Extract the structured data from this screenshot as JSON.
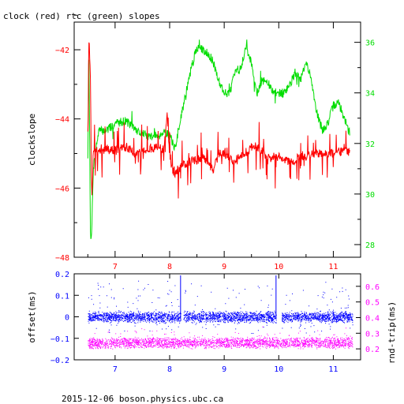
{
  "footer": "2015-12-06 boson.physics.ubc.ca",
  "colors": {
    "red": "#ff0000",
    "green": "#00dd00",
    "blue": "#0000ff",
    "magenta": "#ff00ff",
    "black": "#000000"
  },
  "chart_data": [
    {
      "type": "line",
      "title": "clock (red) rtc (green) slopes",
      "xlabel": "",
      "ylabel": "clockslope",
      "y2label": "",
      "xlim": [
        6.25,
        11.5
      ],
      "ylim": [
        -48,
        -41.2
      ],
      "y2lim": [
        27.5,
        36.8
      ],
      "x_ticks": [
        7,
        8,
        9,
        10,
        11
      ],
      "y_ticks": [
        -48,
        -46,
        -44,
        -42
      ],
      "y2_ticks": [
        28,
        30,
        32,
        34,
        36
      ],
      "grid": false,
      "series": [
        {
          "name": "clock",
          "axis": "left",
          "color": "#ff0000",
          "x": [
            6.5,
            6.52,
            6.55,
            6.57,
            6.6,
            6.65,
            6.7,
            6.8,
            6.9,
            7.0,
            7.2,
            7.4,
            7.6,
            7.8,
            7.9,
            7.95,
            8.0,
            8.05,
            8.1,
            8.2,
            8.3,
            8.4,
            8.5,
            8.6,
            8.7,
            8.8,
            8.9,
            9.0,
            9.1,
            9.2,
            9.3,
            9.4,
            9.5,
            9.6,
            9.7,
            9.8,
            9.9,
            10.0,
            10.1,
            10.2,
            10.3,
            10.4,
            10.5,
            10.6,
            10.7,
            10.8,
            10.9,
            11.0,
            11.1,
            11.2,
            11.3
          ],
          "values": [
            -44.3,
            -41.5,
            -43.0,
            -46.5,
            -45.0,
            -44.9,
            -45.0,
            -44.8,
            -44.9,
            -44.9,
            -44.8,
            -45.0,
            -44.9,
            -44.8,
            -44.9,
            -43.8,
            -45.0,
            -45.5,
            -45.6,
            -45.4,
            -45.3,
            -45.2,
            -45.2,
            -45.1,
            -45.3,
            -45.5,
            -45.0,
            -45.0,
            -45.1,
            -45.3,
            -45.0,
            -45.1,
            -44.8,
            -44.8,
            -45.0,
            -45.1,
            -45.1,
            -45.1,
            -45.2,
            -45.2,
            -45.2,
            -45.1,
            -45.1,
            -45.0,
            -45.0,
            -45.0,
            -45.0,
            -45.0,
            -44.95,
            -44.95,
            -44.95
          ]
        },
        {
          "name": "rtc",
          "axis": "right",
          "color": "#00dd00",
          "x": [
            6.5,
            6.52,
            6.55,
            6.57,
            6.6,
            6.65,
            6.7,
            6.8,
            6.9,
            7.0,
            7.2,
            7.4,
            7.6,
            7.8,
            7.9,
            8.0,
            8.1,
            8.2,
            8.3,
            8.4,
            8.5,
            8.6,
            8.7,
            8.8,
            8.9,
            9.0,
            9.1,
            9.2,
            9.3,
            9.4,
            9.5,
            9.6,
            9.7,
            9.8,
            9.9,
            10.0,
            10.1,
            10.2,
            10.3,
            10.4,
            10.5,
            10.6,
            10.7,
            10.8,
            10.9,
            11.0,
            11.1,
            11.2,
            11.3
          ],
          "values": [
            31.5,
            35.5,
            28.0,
            28.5,
            31.0,
            31.8,
            32.5,
            32.5,
            32.6,
            32.8,
            32.9,
            32.5,
            32.3,
            32.3,
            32.5,
            32.3,
            31.8,
            33.0,
            34.0,
            35.0,
            35.8,
            35.7,
            35.6,
            35.2,
            34.5,
            34.0,
            34.0,
            34.8,
            35.0,
            35.8,
            35.2,
            34.0,
            34.5,
            34.4,
            34.0,
            34.0,
            34.0,
            34.3,
            34.8,
            34.5,
            35.2,
            34.5,
            33.2,
            32.5,
            32.8,
            33.5,
            33.6,
            33.0,
            32.4
          ]
        }
      ]
    },
    {
      "type": "scatter",
      "title": "",
      "xlabel": "",
      "ylabel": "offset(ms)",
      "y2label": "rnd-trip(ms)",
      "xlim": [
        6.25,
        11.5
      ],
      "ylim": [
        -0.2,
        0.2
      ],
      "y2lim": [
        0.13,
        0.68
      ],
      "x_ticks": [
        7,
        8,
        9,
        10,
        11
      ],
      "y_ticks": [
        -0.2,
        -0.1,
        0,
        0.1,
        0.2
      ],
      "y_tick_labels": [
        "-0.2",
        "-0.1",
        "0",
        "0.1",
        "0.2"
      ],
      "y2_ticks": [
        0.2,
        0.3,
        0.4,
        0.5,
        0.6
      ],
      "y2_tick_labels": [
        "0.2",
        "0.3",
        "0.4",
        "0.5",
        "0.6"
      ],
      "grid": false,
      "x_range": [
        6.5,
        11.35
      ],
      "series": [
        {
          "name": "offset",
          "axis": "left",
          "color": "#0000ff",
          "center": 0.0,
          "band": 0.02,
          "gaps": [
            [
              8.2,
              8.25
            ],
            [
              9.95,
              10.05
            ]
          ],
          "spikes": [
            8.2,
            9.95
          ]
        },
        {
          "name": "rnd-trip",
          "axis": "right",
          "color": "#ff00ff",
          "center": 0.24,
          "band": 0.025
        }
      ]
    }
  ]
}
